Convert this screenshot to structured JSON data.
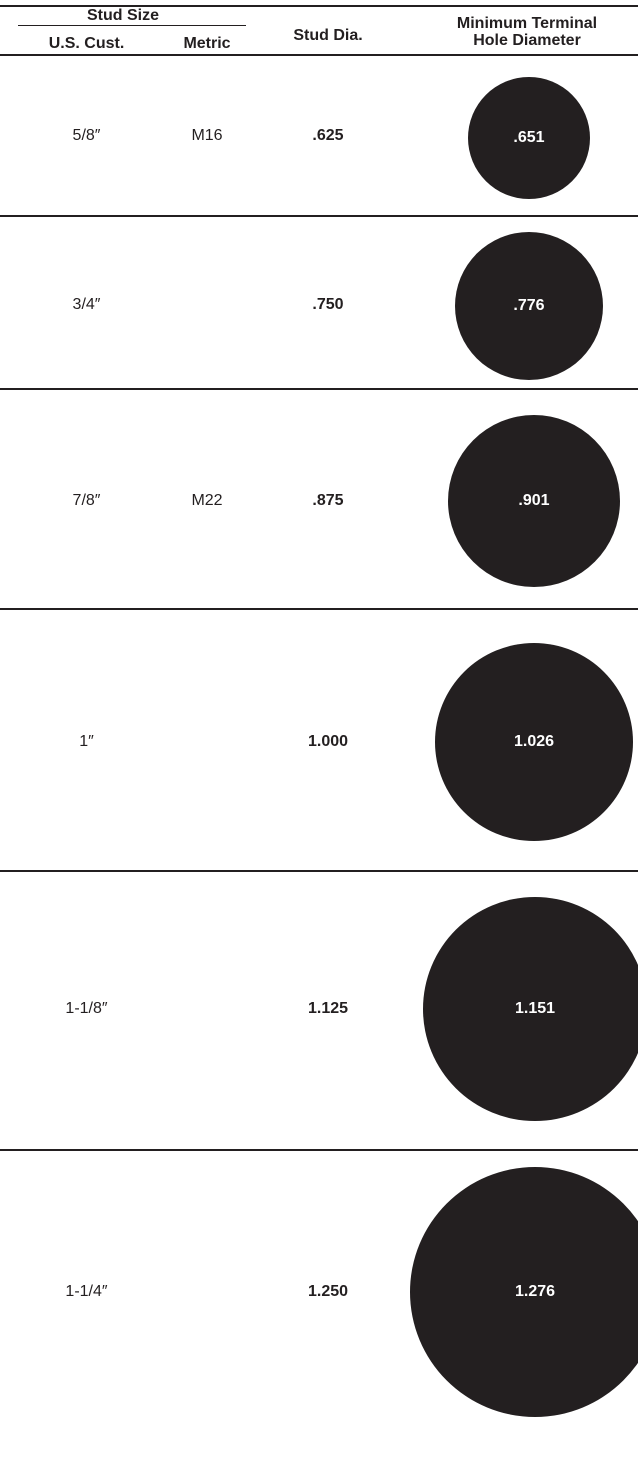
{
  "table": {
    "headers": {
      "stud_size": "Stud Size",
      "us_cust": "U.S. Cust.",
      "metric": "Metric",
      "stud_dia": "Stud Dia.",
      "min_terminal_line1": "Minimum Terminal",
      "min_terminal_line2": "Hole Diameter"
    },
    "rows": [
      {
        "us": "5/8″",
        "metric": "M16",
        "stud_dia": ".625",
        "hole_dia": ".651"
      },
      {
        "us": "3/4″",
        "metric": "",
        "stud_dia": ".750",
        "hole_dia": ".776"
      },
      {
        "us": "7/8″",
        "metric": "M22",
        "stud_dia": ".875",
        "hole_dia": ".901"
      },
      {
        "us": "1″",
        "metric": "",
        "stud_dia": "1.000",
        "hole_dia": "1.026"
      },
      {
        "us": "1-1/8″",
        "metric": "",
        "stud_dia": "1.125",
        "hole_dia": "1.151"
      },
      {
        "us": "1-1/4″",
        "metric": "",
        "stud_dia": "1.250",
        "hole_dia": "1.276"
      }
    ]
  },
  "colors": {
    "ink": "#231f20",
    "background": "#ffffff",
    "circle_text": "#ffffff"
  }
}
